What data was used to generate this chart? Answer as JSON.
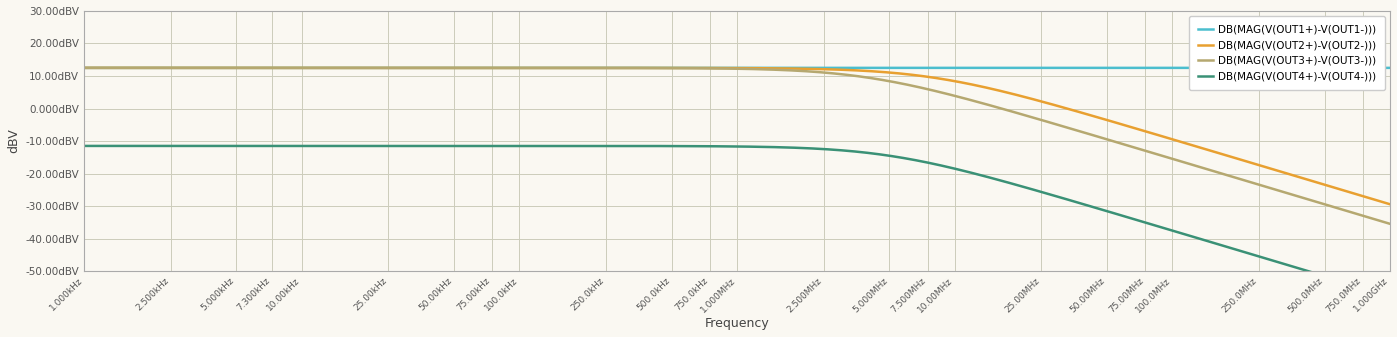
{
  "title": "",
  "xlabel": "Frequency",
  "ylabel": "dBV",
  "background_color": "#faf8f2",
  "plot_background": "#faf8f2",
  "grid_color": "#ccccbb",
  "ylim": [
    -50,
    30
  ],
  "yticks": [
    30,
    20,
    10,
    0,
    -10,
    -20,
    -30,
    -40,
    -50
  ],
  "ytick_labels": [
    "30.00dBV",
    "20.00dBV",
    "10.00dBV",
    "0.000dBV",
    "-10.00dBV",
    "-20.00dBV",
    "-30.00dBV",
    "-40.00dBV",
    "-50.00dBV"
  ],
  "freq_start": 1000,
  "freq_end": 1000000000,
  "lines": [
    {
      "label": "DB(MAG(V(OUT1+)-V(OUT1-)))",
      "color": "#4bbece",
      "passband_db": 12.5,
      "cutoff_hz": 1000000000000000.0,
      "order": 1
    },
    {
      "label": "DB(MAG(V(OUT2+)-V(OUT2-)))",
      "color": "#e8a030",
      "passband_db": 12.5,
      "cutoff_hz": 8000000,
      "order": 1
    },
    {
      "label": "DB(MAG(V(OUT3+)-V(OUT3-)))",
      "color": "#b5a870",
      "passband_db": 12.5,
      "cutoff_hz": 4000000,
      "order": 1
    },
    {
      "label": "DB(MAG(V(OUT4+)-V(OUT4-)))",
      "color": "#3a9176",
      "passband_db": -11.5,
      "cutoff_hz": 5000000,
      "order": 1
    }
  ],
  "xtick_positions": [
    1000,
    2500,
    5000,
    7300,
    10000,
    25000,
    50000,
    75000,
    100000,
    250000,
    500000,
    750000,
    1000000,
    2500000,
    5000000,
    7500000,
    10000000,
    25000000,
    50000000,
    75000000,
    100000000,
    250000000,
    500000000,
    750000000,
    1000000000
  ],
  "xtick_labels": [
    "1.000kHz",
    "2.500kHz",
    "5.000kHz",
    "7.300kHz",
    "10.00kHz",
    "25.00kHz",
    "50.00kHz",
    "75.00kHz",
    "100.0kHz",
    "250.0kHz",
    "500.0kHz",
    "750.0kHz",
    "1.000MHz",
    "2.500MHz",
    "5.000MHz",
    "7.500MHz",
    "10.00MHz",
    "25.00MHz",
    "50.00MHz",
    "75.00MHz",
    "100.0MHz",
    "250.0MHz",
    "500.0MHz",
    "750.0MHz",
    "1.000GHz"
  ]
}
